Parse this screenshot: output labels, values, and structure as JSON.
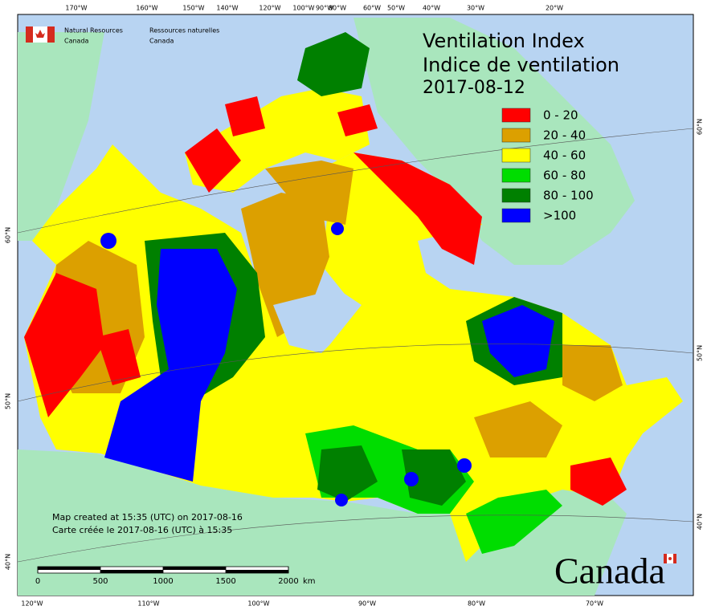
{
  "title": [
    "Ventilation Index",
    "Indice de ventilation",
    "2017-08-12"
  ],
  "agency": {
    "en": [
      "Natural Resources",
      "Canada"
    ],
    "fr": [
      "Ressources naturelles",
      "Canada"
    ]
  },
  "legend": [
    {
      "label": "0 - 20",
      "color": "#ff0000"
    },
    {
      "label": "20 - 40",
      "color": "#dca000"
    },
    {
      "label": "40 - 60",
      "color": "#ffff00"
    },
    {
      "label": "60 - 80",
      "color": "#00dd00"
    },
    {
      "label": "80 - 100",
      "color": "#008000"
    },
    {
      "label": ">100",
      "color": "#0000ff"
    }
  ],
  "graticule": {
    "top": [
      "170°W",
      "160°W",
      "150°W",
      "140°W",
      "120°W",
      "100°W",
      "90°W",
      "80°W",
      "60°W",
      "50°W",
      "40°W",
      "30°W",
      "20°W"
    ],
    "bottom": [
      "120°W",
      "110°W",
      "100°W",
      "90°W",
      "80°W",
      "70°W"
    ],
    "left": [
      "60°N",
      "50°N",
      "40°N"
    ],
    "right": [
      "60°N",
      "50°N",
      "40°N"
    ]
  },
  "scale_bar": {
    "ticks": [
      0,
      500,
      1000,
      1500,
      2000
    ],
    "unit": "km"
  },
  "credits": [
    "Map created at 15:35 (UTC) on 2017-08-16",
    "Carte créée le 2017-08-16 (UTC) à 15:35"
  ],
  "wordmark": "Canada"
}
